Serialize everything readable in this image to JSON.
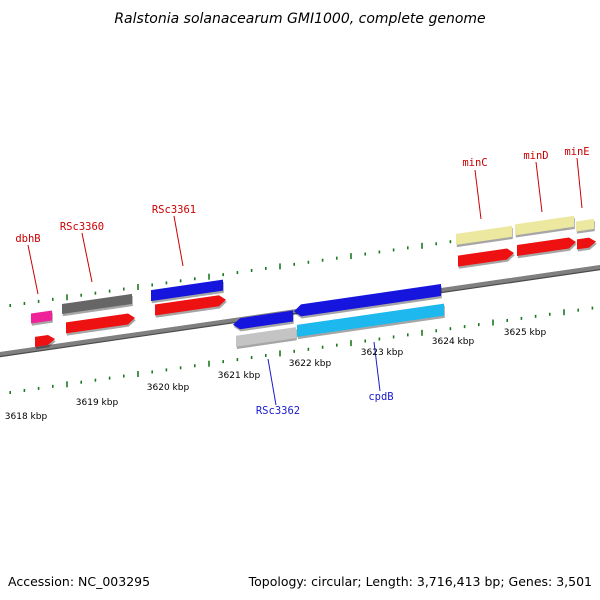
{
  "title": "Ralstonia solanacearum GMI1000, complete genome",
  "footer": {
    "accession": "Accession: NC_003295",
    "summary": "Topology: circular; Length: 3,716,413 bp; Genes: 3,501"
  },
  "scale_labels": [
    {
      "kbp": 3618,
      "text": "3618 kbp"
    },
    {
      "kbp": 3619,
      "text": "3619 kbp"
    },
    {
      "kbp": 3620,
      "text": "3620 kbp"
    },
    {
      "kbp": 3621,
      "text": "3621 kbp"
    },
    {
      "kbp": 3622,
      "text": "3622 kbp"
    },
    {
      "kbp": 3623,
      "text": "3623 kbp"
    },
    {
      "kbp": 3624,
      "text": "3624 kbp"
    },
    {
      "kbp": 3625,
      "text": "3625 kbp"
    }
  ],
  "gene_labels": [
    {
      "name": "dbhB",
      "color": "#cc0000"
    },
    {
      "name": "RSc3360",
      "color": "#cc0000"
    },
    {
      "name": "RSc3361",
      "color": "#cc0000"
    },
    {
      "name": "minC",
      "color": "#cc0000"
    },
    {
      "name": "minD",
      "color": "#cc0000"
    },
    {
      "name": "minE",
      "color": "#cc0000"
    },
    {
      "name": "RSc3362",
      "color": "#1a1acc"
    },
    {
      "name": "cpdB",
      "color": "#1a1acc"
    }
  ],
  "colors": {
    "backbone": "#808080",
    "tick": "#1e7a1e",
    "feature_red": "#ee1111",
    "feature_blue": "#1515dd",
    "feature_cyan": "#1cb8ee",
    "feature_pink": "#ee2299",
    "feature_dark_gray": "#666666",
    "feature_light_gray": "#c4c4c4",
    "feature_khaki": "#ece8a0",
    "label_red": "#cc0000",
    "label_blue": "#1a1acc"
  }
}
